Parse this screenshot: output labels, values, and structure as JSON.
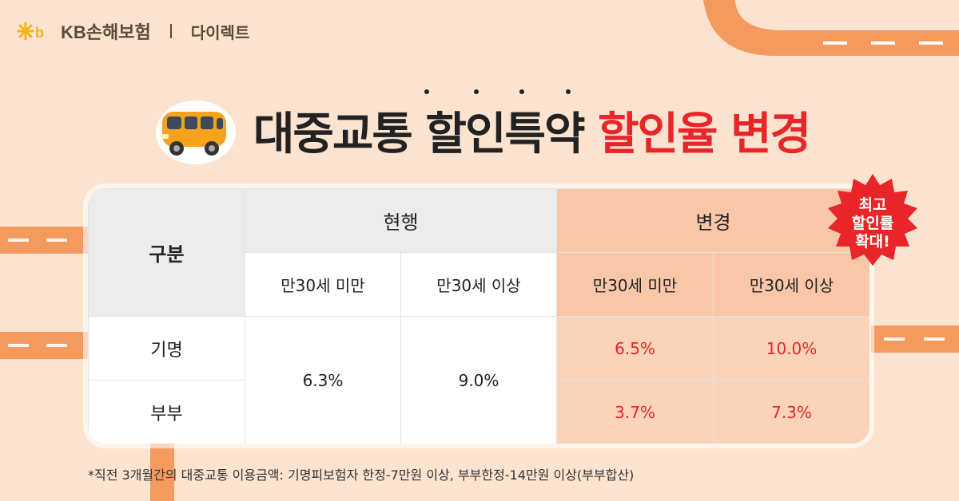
{
  "brand": {
    "name": "KB손해보험",
    "divider": "|",
    "channel": "다이렉트"
  },
  "title": {
    "part1": "대중교통 할인특약 ",
    "part2": "할인율 변경"
  },
  "badge": {
    "line1": "최고",
    "line2": "할인률",
    "line3": "확대!"
  },
  "table": {
    "corner": "구분",
    "group_current": "현행",
    "group_changed": "변경",
    "sub_under30": "만30세 미만",
    "sub_over30": "만30세 이상",
    "rows": [
      {
        "label": "기명",
        "current_under30": "6.3%",
        "current_over30": "9.0%",
        "changed_under30": "6.5%",
        "changed_over30": "10.0%"
      },
      {
        "label": "부부",
        "current_under30": "6.3%",
        "current_over30": "9.0%",
        "changed_under30": "3.7%",
        "changed_over30": "7.3%"
      }
    ]
  },
  "footnote": "*직전 3개월간의 대중교통 이용금액: 기명피보험자 한정-7만원 이상, 부부한정-14만원 이상(부부합산)",
  "colors": {
    "accent_red": "#e8262a",
    "orange_header": "#f9c6a8",
    "orange_cell": "#fbd3b8",
    "road": "#f59a5f",
    "background": "#fbe3cf"
  }
}
